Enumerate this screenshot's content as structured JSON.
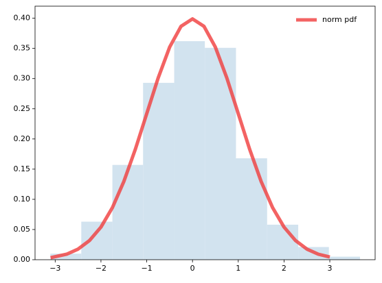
{
  "chart_data": {
    "type": "histogram",
    "bins": [
      -3.105,
      -2.43,
      -1.75,
      -1.08,
      -0.4,
      0.27,
      0.95,
      1.63,
      2.31,
      2.98,
      3.66
    ],
    "values": [
      0.01,
      0.063,
      0.157,
      0.293,
      0.362,
      0.351,
      0.168,
      0.058,
      0.021,
      0.005
    ],
    "color": "#d2e3ef",
    "overlay": {
      "type": "line",
      "name": "norm pdf",
      "color": "#f03c3c",
      "alpha": 0.8,
      "x": [
        -3.1,
        -2.75,
        -2.5,
        -2.25,
        -2,
        -1.75,
        -1.5,
        -1.25,
        -1,
        -0.75,
        -0.5,
        -0.25,
        0,
        0.25,
        0.5,
        0.75,
        1,
        1.25,
        1.5,
        1.75,
        2,
        2.25,
        2.5,
        2.75,
        3.0
      ],
      "values": [
        0.00327,
        0.00909,
        0.01753,
        0.03174,
        0.05399,
        0.08628,
        0.12952,
        0.18265,
        0.24197,
        0.30114,
        0.35207,
        0.38667,
        0.39894,
        0.38667,
        0.35207,
        0.30114,
        0.24197,
        0.18265,
        0.12952,
        0.08628,
        0.05399,
        0.03174,
        0.01753,
        0.00909,
        0.00443
      ]
    },
    "xlim": [
      -3.44,
      3.99
    ],
    "ylim": [
      0,
      0.42
    ],
    "xticks": [
      {
        "value": -3,
        "label": "−3"
      },
      {
        "value": -2,
        "label": "−2"
      },
      {
        "value": -1,
        "label": "−1"
      },
      0,
      1,
      2,
      3
    ],
    "yticks": [
      {
        "value": 0,
        "label": "0.00"
      },
      {
        "value": 0.05,
        "label": "0.05"
      },
      {
        "value": 0.1,
        "label": "0.10"
      },
      {
        "value": 0.15,
        "label": "0.15"
      },
      {
        "value": 0.2,
        "label": "0.20"
      },
      {
        "value": 0.25,
        "label": "0.25"
      },
      {
        "value": 0.3,
        "label": "0.30"
      },
      {
        "value": 0.35,
        "label": "0.35"
      },
      {
        "value": 0.4,
        "label": "0.40"
      }
    ],
    "legend": "upper right"
  }
}
